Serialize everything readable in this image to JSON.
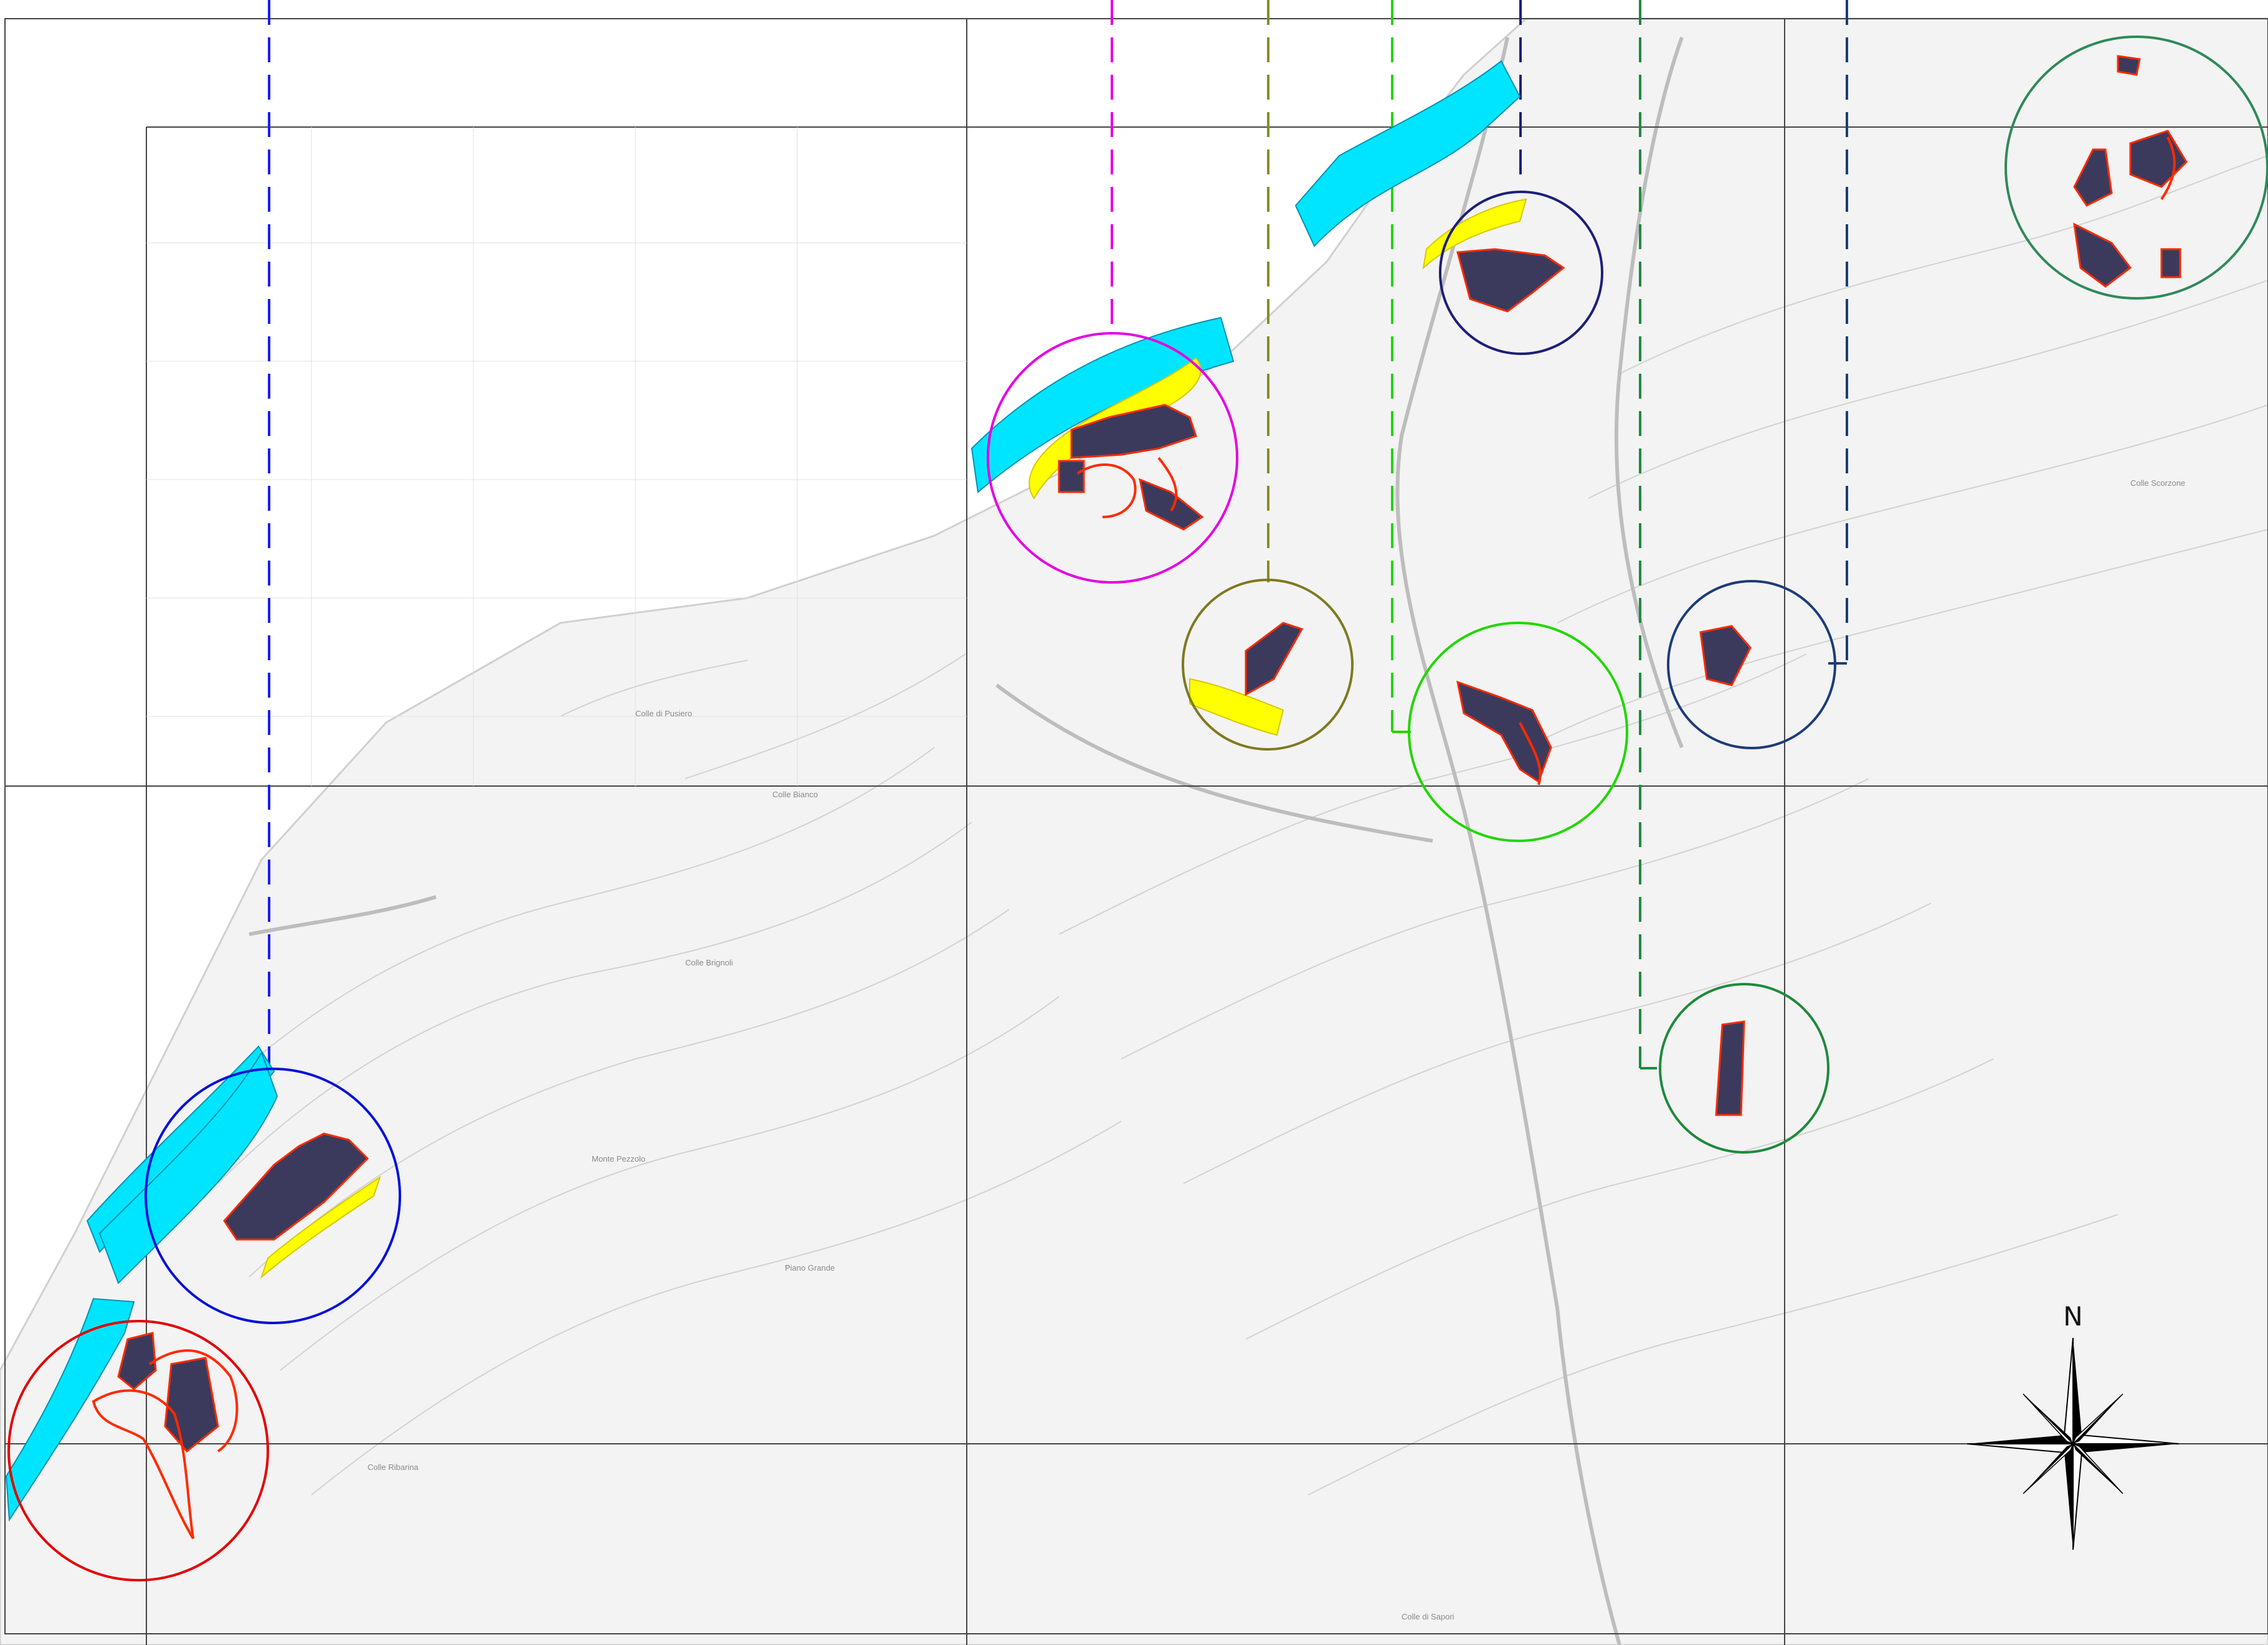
{
  "compass": {
    "north_label": "N",
    "icon": "compass-rose-icon"
  },
  "colors": {
    "sea_buffer": "#00e5ff",
    "coastal_buffer": "#ffff00",
    "panel_fill": "#3c3a5c",
    "boundary": "#ff2a00",
    "topo_line": "#c8c8c8",
    "grid_line": "#555555"
  },
  "sites": [
    {
      "id": "site-1",
      "ring_color": "#e30000"
    },
    {
      "id": "site-2",
      "ring_color": "#0010d9"
    },
    {
      "id": "site-3",
      "ring_color": "#e400e4"
    },
    {
      "id": "site-4",
      "ring_color": "#7e7a1f"
    },
    {
      "id": "site-5",
      "ring_color": "#1c1f7a"
    },
    {
      "id": "site-6",
      "ring_color": "#22d600"
    },
    {
      "id": "site-7",
      "ring_color": "#1c3c7a"
    },
    {
      "id": "site-8",
      "ring_color": "#1e8a3c"
    },
    {
      "id": "site-9",
      "ring_color": "#2e8a5a"
    }
  ],
  "topo_labels": [
    "Monte Pezzolo",
    "Colle Brignoli",
    "Colle di Pusiero",
    "Colle Bianco",
    "Colle Ribarina",
    "Piano Grande",
    "Colle di Sapori",
    "Colle Scorzone"
  ]
}
